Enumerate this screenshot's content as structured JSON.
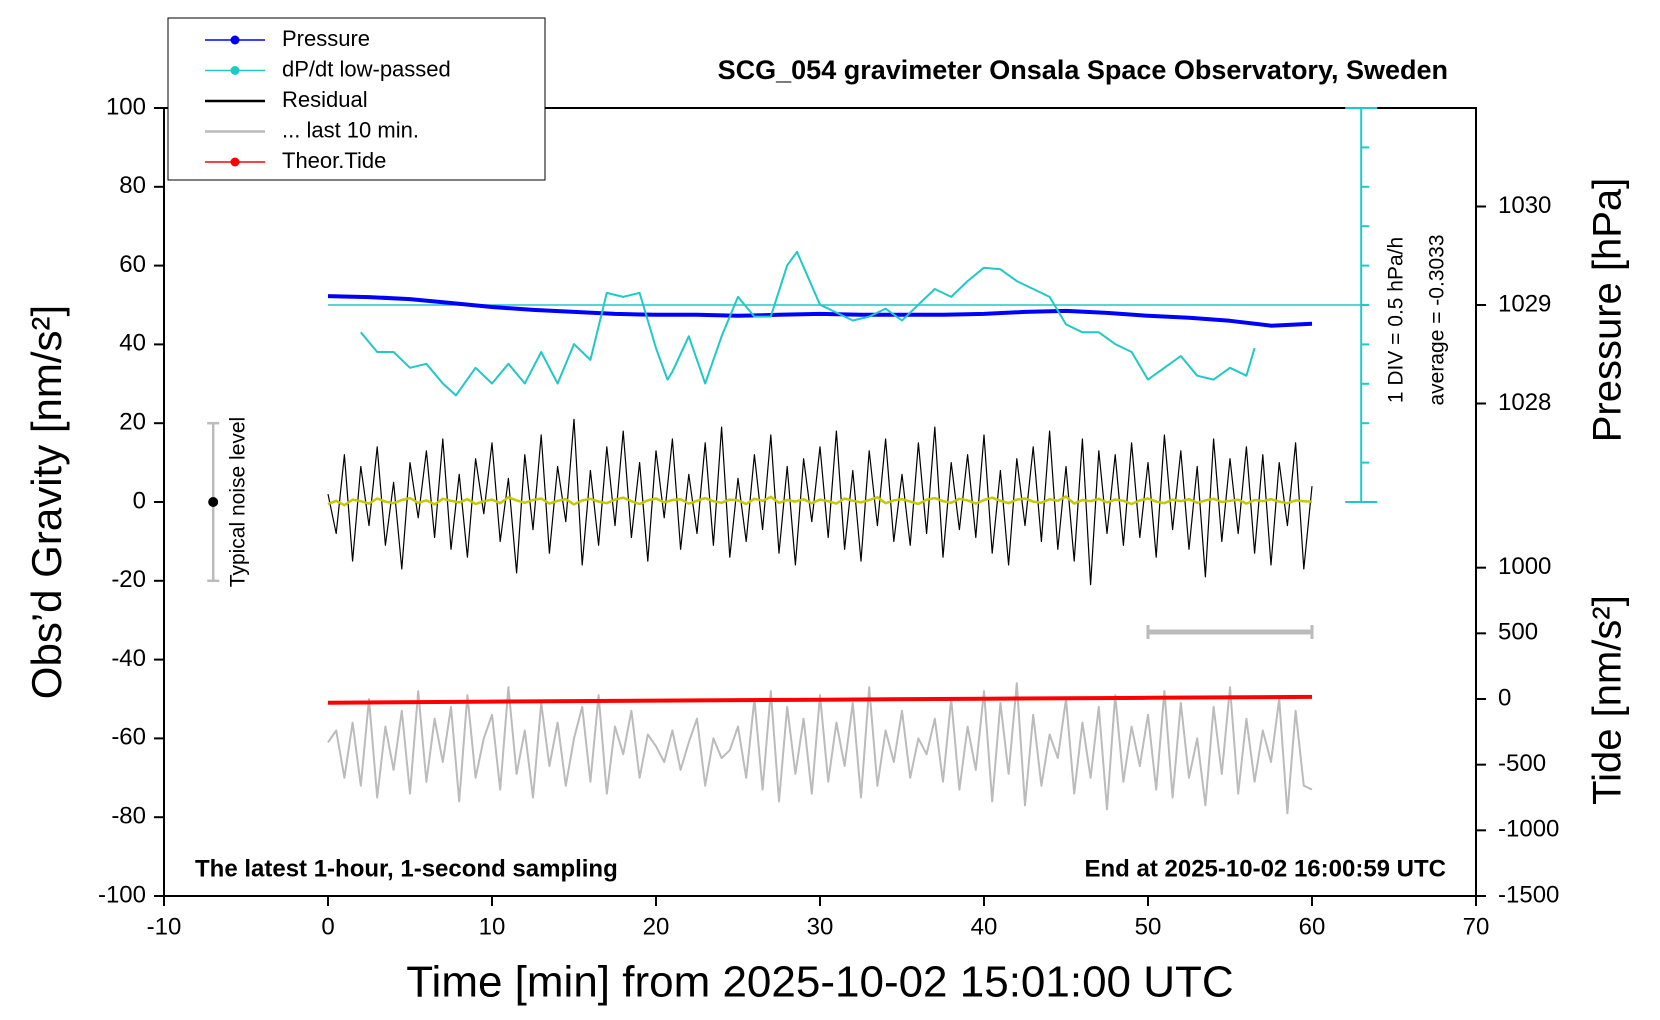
{
  "chart_data": {
    "type": "line",
    "title": "SCG_054 gravimeter Onsala Space Observatory, Sweden",
    "x_label": "Time [min] from 2025-10-02 15:01:00 UTC",
    "y_label": "Obs’d Gravity [nm/s²]",
    "y2_label": "Pressure [hPa]",
    "y3_label": "Tide [nm/s²]",
    "annotations": [
      "The latest 1-hour, 1-second sampling",
      "End at 2025-10-02 16:00:59 UTC"
    ],
    "xlim": [
      -10,
      70
    ],
    "xticks": [
      -10,
      0,
      10,
      20,
      30,
      40,
      50,
      60,
      70
    ],
    "ylim": [
      -100,
      100
    ],
    "yticks": [
      -100,
      -80,
      -60,
      -40,
      -20,
      0,
      20,
      40,
      60,
      80,
      100
    ],
    "y2lim": [
      1023,
      1031
    ],
    "y2ticks": [
      1028,
      1029,
      1030
    ],
    "y3lim": [
      -1500,
      4500
    ],
    "y3ticks": [
      -1500,
      -1000,
      -500,
      0,
      500,
      1000
    ],
    "y4lim": [
      -7.8033,
      2.1967
    ],
    "dpdt_average": {
      "value": -0.3033,
      "label": "average = -0.3033"
    },
    "dpdt_div": {
      "value": 0.5,
      "label": "1 DIV = 0.5 hPa/h"
    },
    "dpdt_scale_x": 63,
    "noise_level": {
      "label": "Typical noise level",
      "x": -7,
      "low": -20,
      "center": 0,
      "high": 20
    },
    "window_bar": {
      "x": [
        50,
        60
      ],
      "y": -33
    },
    "legend": "top-left",
    "x": [
      0,
      0.5,
      1,
      1.5,
      2,
      2.5,
      3,
      3.5,
      4,
      4.5,
      5,
      5.5,
      6,
      6.5,
      7,
      7.5,
      8,
      8.5,
      9,
      9.5,
      10,
      10.5,
      11,
      11.5,
      12,
      12.5,
      13,
      13.5,
      14,
      14.5,
      15,
      15.5,
      16,
      16.5,
      17,
      17.5,
      18,
      18.5,
      19,
      19.5,
      20,
      20.5,
      21,
      21.5,
      22,
      22.5,
      23,
      23.5,
      24,
      24.5,
      25,
      25.5,
      26,
      26.5,
      27,
      27.5,
      28,
      28.5,
      29,
      29.5,
      30,
      30.5,
      31,
      31.5,
      32,
      32.5,
      33,
      33.5,
      34,
      34.5,
      35,
      35.5,
      36,
      36.5,
      37,
      37.5,
      38,
      38.5,
      39,
      39.5,
      40,
      40.5,
      41,
      41.5,
      42,
      42.5,
      43,
      43.5,
      44,
      44.5,
      45,
      45.5,
      46,
      46.5,
      47,
      47.5,
      48,
      48.5,
      49,
      49.5,
      50,
      50.5,
      51,
      51.5,
      52,
      52.5,
      53,
      53.5,
      54,
      54.5,
      55,
      55.5,
      56,
      56.5,
      57,
      57.5,
      58,
      58.5,
      59,
      59.5,
      60
    ],
    "series": [
      {
        "name": "Pressure",
        "color": "#0000ff",
        "axis": "y2",
        "marker": true,
        "width": 4,
        "x": [
          0,
          2.5,
          5,
          7.5,
          10,
          12.5,
          15,
          17.5,
          20,
          22.5,
          25,
          27.5,
          30,
          32.5,
          35,
          37.5,
          40,
          42.5,
          45,
          47.5,
          50,
          52.5,
          55,
          57.5,
          60
        ],
        "values": [
          1029.09,
          1029.08,
          1029.06,
          1029.02,
          1028.98,
          1028.95,
          1028.93,
          1028.91,
          1028.9,
          1028.9,
          1028.89,
          1028.9,
          1028.91,
          1028.9,
          1028.9,
          1028.9,
          1028.91,
          1028.93,
          1028.94,
          1028.92,
          1028.89,
          1028.87,
          1028.84,
          1028.79,
          1028.81
        ]
      },
      {
        "name": "dP/dt low-passed",
        "color": "#20c8c8",
        "axis": "y4",
        "marker": true,
        "width": 2,
        "x": [
          2,
          3,
          4,
          5,
          6,
          7,
          7.8,
          9,
          10,
          11,
          12,
          13,
          14,
          15,
          16,
          17,
          18,
          19,
          20,
          20.7,
          21,
          22,
          23,
          24,
          25,
          26,
          27,
          28,
          28.6,
          30,
          31,
          32,
          33,
          34,
          35,
          36,
          37,
          38,
          39,
          40,
          41,
          42,
          43,
          44,
          45,
          46,
          47,
          48,
          49,
          50,
          51,
          52,
          53,
          54,
          55,
          56,
          56.5
        ],
        "values": [
          -0.65,
          -0.9,
          -0.9,
          -1.1,
          -1.05,
          -1.3,
          -1.45,
          -1.1,
          -1.3,
          -1.05,
          -1.3,
          -0.9,
          -1.3,
          -0.8,
          -1.0,
          -0.15,
          -0.2,
          -0.15,
          -0.85,
          -1.25,
          -1.15,
          -0.7,
          -1.3,
          -0.7,
          -0.2,
          -0.45,
          -0.45,
          0.2,
          0.37,
          -0.3,
          -0.4,
          -0.5,
          -0.45,
          -0.35,
          -0.5,
          -0.3,
          -0.1,
          -0.2,
          0.0,
          0.17,
          0.15,
          0.0,
          -0.1,
          -0.2,
          -0.55,
          -0.65,
          -0.65,
          -0.8,
          -0.9,
          -1.25,
          -1.1,
          -0.95,
          -1.2,
          -1.25,
          -1.1,
          -1.2,
          -0.85
        ]
      },
      {
        "name": "Residual",
        "color": "#000000",
        "axis": "y",
        "width": 1.2,
        "values": [
          2,
          -8,
          12,
          -15,
          9,
          -6,
          14,
          -11,
          5,
          -17,
          10,
          -4,
          13,
          -9,
          16,
          -12,
          7,
          -14,
          11,
          -3,
          15,
          -10,
          6,
          -18,
          12,
          -7,
          17,
          -13,
          9,
          -5,
          21,
          -16,
          8,
          -11,
          14,
          -6,
          18,
          -9,
          10,
          -15,
          13,
          -4,
          16,
          -12,
          7,
          -8,
          15,
          -11,
          19,
          -14,
          6,
          -10,
          12,
          -7,
          17,
          -13,
          9,
          -16,
          11,
          -5,
          14,
          -9,
          18,
          -12,
          8,
          -15,
          13,
          -6,
          16,
          -10,
          7,
          -11,
          15,
          -8,
          19,
          -14,
          10,
          -7,
          12,
          -9,
          17,
          -13,
          8,
          -16,
          11,
          -6,
          14,
          -10,
          18,
          -12,
          9,
          -15,
          16,
          -21,
          13,
          -8,
          12,
          -11,
          15,
          -9,
          10,
          -14,
          17,
          -7,
          13,
          -12,
          9,
          -19,
          16,
          -10,
          11,
          -8,
          14,
          -13,
          12,
          -16,
          10,
          -6,
          15,
          -17,
          4
        ]
      },
      {
        "name": "... last 10 min.",
        "color": "#bbbbbb",
        "axis": "y",
        "width": 2,
        "values": [
          -61,
          -58,
          -70,
          -56,
          -72,
          -50,
          -75,
          -57,
          -68,
          -53,
          -74,
          -48,
          -71,
          -55,
          -66,
          -52,
          -76,
          -49,
          -70,
          -60,
          -54,
          -73,
          -47,
          -69,
          -58,
          -75,
          -51,
          -67,
          -56,
          -72,
          -60,
          -52,
          -71,
          -49,
          -74,
          -57,
          -64,
          -53,
          -70,
          -59,
          -62,
          -66,
          -58,
          -68,
          -61,
          -55,
          -72,
          -60,
          -65,
          -63,
          -57,
          -70,
          -50,
          -73,
          -48,
          -76,
          -52,
          -69,
          -55,
          -74,
          -49,
          -71,
          -56,
          -67,
          -51,
          -75,
          -47,
          -72,
          -58,
          -66,
          -53,
          -70,
          -60,
          -64,
          -55,
          -71,
          -50,
          -73,
          -57,
          -68,
          -48,
          -76,
          -51,
          -69,
          -46,
          -77,
          -54,
          -72,
          -59,
          -65,
          -50,
          -74,
          -56,
          -70,
          -52,
          -78,
          -49,
          -71,
          -57,
          -67,
          -54,
          -73,
          -48,
          -75,
          -51,
          -70,
          -60,
          -77,
          -52,
          -69,
          -47,
          -74,
          -55,
          -71,
          -58,
          -66,
          -50,
          -79,
          -53,
          -72,
          -73
        ]
      },
      {
        "name": "Theor.Tide",
        "color": "#ff0000",
        "axis": "y3",
        "marker": true,
        "width": 4,
        "x": [
          0,
          10,
          20,
          30,
          40,
          50,
          60
        ],
        "values": [
          -28,
          -20,
          -12,
          -5,
          2,
          9,
          16
        ]
      },
      {
        "color": "#c8c800",
        "axis": "y",
        "width": 2.5,
        "values": [
          -0.5,
          0.3,
          -0.8,
          0.6,
          0.2,
          -0.4,
          0.9,
          0.1,
          -0.3,
          0.5,
          1.0,
          -0.2,
          0.4,
          -0.6,
          0.8,
          0.3,
          -0.1,
          0.7,
          -0.5,
          0.2,
          0.6,
          -0.3,
          1.2,
          0.4,
          -0.2,
          0.5,
          0.9,
          -0.4,
          0.3,
          0.7,
          -0.6,
          0.4,
          0.8,
          0.1,
          -0.3,
          0.6,
          1.1,
          0.2,
          -0.5,
          0.4,
          0.9,
          -0.1,
          0.5,
          0.7,
          -0.4,
          0.3,
          1.0,
          0.2,
          -0.2,
          0.6,
          0.4,
          -0.5,
          0.8,
          0.3,
          1.3,
          -0.2,
          0.5,
          0.1,
          0.7,
          -0.3,
          0.6,
          0.2,
          -0.4,
          0.9,
          0.3,
          -0.1,
          0.5,
          1.2,
          -0.3,
          0.4,
          0.7,
          0.1,
          -0.5,
          0.6,
          1.0,
          0.2,
          -0.2,
          0.8,
          0.4,
          -0.4,
          0.5,
          1.1,
          0.3,
          -0.3,
          0.6,
          0.9,
          0.1,
          -0.2,
          0.7,
          0.3,
          1.4,
          -0.4,
          0.5,
          0.2,
          0.8,
          -0.1,
          0.6,
          0.3,
          -0.5,
          0.4,
          0.9,
          0.1,
          -0.3,
          0.6,
          0.2,
          0.7,
          -0.2,
          0.4,
          0.8,
          0.0,
          0.3,
          0.6,
          -0.4,
          0.5,
          0.2,
          0.7,
          0.1,
          -0.3,
          0.4,
          0.2,
          0.1
        ]
      }
    ]
  }
}
